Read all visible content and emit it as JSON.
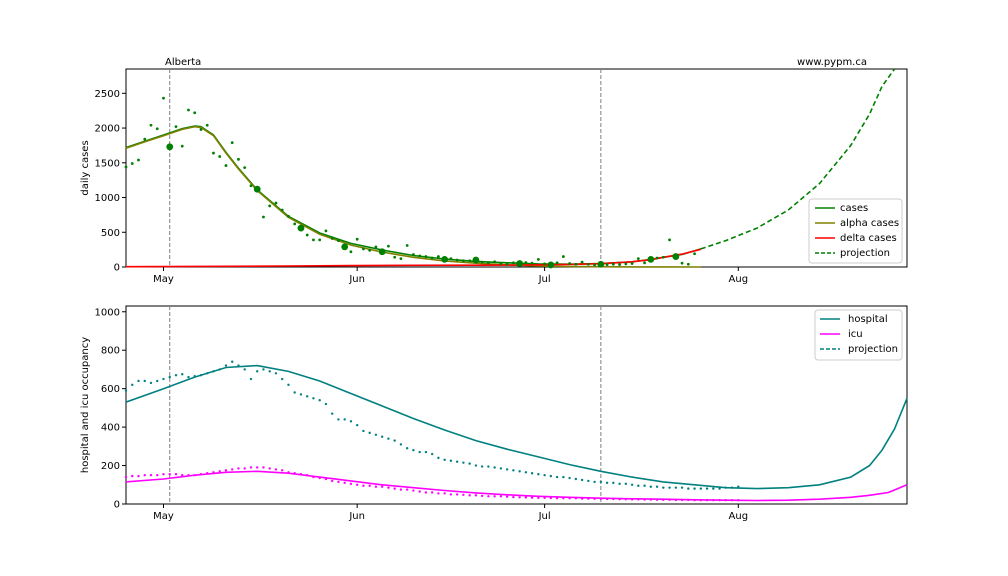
{
  "page": {
    "left_label": "Alberta",
    "right_label": "www.pypm.ca"
  },
  "x_axis": {
    "tick_labels": [
      "May",
      "Jun",
      "Jul",
      "Aug"
    ],
    "tick_days": [
      0,
      31,
      61,
      92
    ],
    "range": [
      -6,
      119
    ]
  },
  "vertical_markers_days": [
    1,
    70
  ],
  "colors": {
    "cases": "#008000",
    "alpha": "#808000",
    "delta": "#ff0000",
    "hospital": "#008080",
    "icu": "#ff00ff",
    "marker_line": "#808080"
  },
  "chart_data": [
    {
      "type": "line",
      "ylabel": "daily cases",
      "ylim": [
        0,
        2850
      ],
      "yticks": [
        0,
        500,
        1000,
        1500,
        2000,
        2500
      ],
      "legend_position": "lower-right",
      "series": [
        {
          "name": "cases",
          "style": "solid",
          "color": "#008000",
          "x": [
            -6,
            -3,
            0,
            3,
            5,
            6,
            8,
            10,
            12,
            15,
            20,
            25,
            30,
            35,
            40,
            45,
            50,
            55,
            60,
            65,
            70,
            75,
            78,
            80,
            83,
            86
          ],
          "y": [
            1720,
            1810,
            1900,
            1990,
            2030,
            2020,
            1900,
            1650,
            1420,
            1110,
            730,
            490,
            340,
            245,
            165,
            115,
            80,
            60,
            45,
            40,
            50,
            75,
            110,
            140,
            180,
            260
          ]
        },
        {
          "name": "alpha cases",
          "style": "solid",
          "color": "#808000",
          "x": [
            -6,
            -3,
            0,
            3,
            5,
            6,
            8,
            10,
            12,
            15,
            20,
            25,
            30,
            35,
            40,
            45,
            50,
            55,
            60,
            65,
            70,
            75,
            80,
            86
          ],
          "y": [
            1710,
            1800,
            1890,
            1980,
            2020,
            2010,
            1890,
            1640,
            1410,
            1100,
            715,
            470,
            315,
            215,
            140,
            88,
            55,
            30,
            15,
            7,
            4,
            2,
            1,
            0
          ]
        },
        {
          "name": "delta cases",
          "style": "solid",
          "color": "#ff0000",
          "x": [
            -6,
            10,
            20,
            30,
            40,
            50,
            55,
            60,
            65,
            70,
            75,
            78,
            80,
            83,
            86
          ],
          "y": [
            5,
            10,
            15,
            20,
            24,
            26,
            28,
            32,
            38,
            48,
            75,
            105,
            140,
            185,
            255
          ]
        },
        {
          "name": "projection",
          "style": "dashed",
          "color": "#008000",
          "x": [
            86,
            90,
            95,
            100,
            105,
            110,
            113,
            115,
            117
          ],
          "y": [
            260,
            380,
            560,
            820,
            1200,
            1750,
            2200,
            2600,
            2850
          ]
        }
      ],
      "points_x": [
        -6,
        -5,
        -4,
        -3,
        -2,
        -1,
        0,
        1,
        2,
        3,
        4,
        5,
        6,
        7,
        8,
        9,
        10,
        11,
        12,
        13,
        14,
        15,
        16,
        17,
        18,
        19,
        20,
        21,
        22,
        23,
        24,
        25,
        26,
        27,
        28,
        29,
        30,
        31,
        32,
        33,
        34,
        35,
        36,
        37,
        38,
        39,
        40,
        41,
        42,
        43,
        44,
        45,
        46,
        47,
        48,
        49,
        50,
        51,
        52,
        53,
        54,
        55,
        56,
        57,
        58,
        59,
        60,
        61,
        62,
        63,
        64,
        65,
        66,
        67,
        68,
        69,
        70,
        71,
        72,
        73,
        74,
        75,
        76,
        77,
        78,
        79,
        80,
        81,
        82,
        83,
        84,
        85
      ],
      "points_y": [
        1440,
        1490,
        1540,
        1840,
        2040,
        1990,
        2430,
        1730,
        2020,
        1740,
        2260,
        2220,
        1980,
        2040,
        1640,
        1590,
        1460,
        1790,
        1550,
        1430,
        1170,
        1120,
        720,
        880,
        920,
        820,
        730,
        620,
        560,
        460,
        390,
        390,
        520,
        410,
        380,
        290,
        220,
        400,
        260,
        240,
        290,
        220,
        300,
        140,
        120,
        310,
        180,
        160,
        150,
        130,
        150,
        110,
        120,
        100,
        90,
        90,
        100,
        70,
        60,
        75,
        50,
        40,
        60,
        50,
        65,
        55,
        110,
        45,
        30,
        60,
        150,
        50,
        40,
        70,
        40,
        30,
        40,
        35,
        40,
        35,
        45,
        50,
        120,
        60,
        110,
        130,
        140,
        390,
        150,
        55,
        40,
        190
      ],
      "points_size": [
        2,
        2,
        2,
        2,
        2,
        2,
        2,
        5,
        2,
        2,
        2,
        2,
        2,
        2,
        2,
        2,
        2,
        2,
        2,
        2,
        2,
        5,
        2,
        2,
        2,
        2,
        2,
        2,
        5,
        2,
        2,
        2,
        2,
        2,
        2,
        5,
        2,
        2,
        2,
        2,
        2,
        5,
        2,
        2,
        2,
        2,
        2,
        2,
        2,
        2,
        2,
        5,
        2,
        2,
        2,
        2,
        5,
        2,
        2,
        2,
        2,
        2,
        2,
        5,
        2,
        2,
        2,
        2,
        5,
        2,
        2,
        2,
        2,
        2,
        2,
        2,
        5,
        2,
        2,
        2,
        2,
        2,
        2,
        2,
        5,
        2,
        2,
        2,
        5,
        2,
        2,
        2
      ]
    },
    {
      "type": "line",
      "ylabel": "hospital and icu occupancy",
      "ylim": [
        0,
        1030
      ],
      "yticks": [
        0,
        200,
        400,
        600,
        800,
        1000
      ],
      "legend_position": "top-right",
      "series": [
        {
          "name": "hospital",
          "style": "solid",
          "color": "#008080",
          "x": [
            -6,
            0,
            5,
            10,
            15,
            20,
            25,
            30,
            35,
            40,
            45,
            50,
            55,
            60,
            65,
            70,
            75,
            80,
            85,
            90,
            95,
            100,
            105,
            110,
            113,
            115,
            117,
            119
          ],
          "y": [
            530,
            600,
            660,
            710,
            720,
            690,
            640,
            575,
            510,
            445,
            385,
            330,
            285,
            245,
            205,
            170,
            140,
            115,
            100,
            85,
            80,
            85,
            100,
            140,
            200,
            280,
            390,
            550
          ]
        },
        {
          "name": "icu",
          "style": "solid",
          "color": "#ff00ff",
          "x": [
            -6,
            0,
            5,
            10,
            15,
            20,
            25,
            30,
            35,
            40,
            45,
            50,
            55,
            60,
            65,
            70,
            75,
            80,
            85,
            90,
            95,
            100,
            105,
            110,
            113,
            116,
            119
          ],
          "y": [
            115,
            130,
            150,
            165,
            170,
            160,
            140,
            120,
            100,
            85,
            70,
            58,
            48,
            40,
            35,
            30,
            27,
            25,
            22,
            20,
            18,
            20,
            25,
            35,
            45,
            60,
            100
          ]
        },
        {
          "name": "projection",
          "style": "dashed",
          "color": "#008080",
          "x": [],
          "y": []
        }
      ],
      "hospital_points_x": [
        -6,
        -5,
        -4,
        -3,
        -2,
        -1,
        0,
        1,
        2,
        3,
        4,
        5,
        6,
        7,
        8,
        9,
        10,
        11,
        12,
        13,
        14,
        15,
        16,
        17,
        18,
        19,
        20,
        21,
        22,
        23,
        24,
        25,
        26,
        27,
        28,
        29,
        30,
        31,
        32,
        33,
        34,
        35,
        36,
        37,
        38,
        39,
        40,
        41,
        42,
        43,
        44,
        45,
        46,
        47,
        48,
        49,
        50,
        51,
        52,
        53,
        54,
        55,
        56,
        57,
        58,
        59,
        60,
        61,
        62,
        63,
        64,
        65,
        66,
        67,
        68,
        69,
        70,
        71,
        72,
        73,
        74,
        75,
        76,
        77,
        78,
        79,
        80,
        81,
        82,
        83,
        84,
        85,
        86,
        87,
        88,
        89,
        90,
        91,
        92
      ],
      "hospital_points_y": [
        590,
        620,
        640,
        640,
        630,
        640,
        650,
        660,
        670,
        675,
        660,
        665,
        670,
        680,
        690,
        700,
        720,
        740,
        720,
        700,
        650,
        690,
        700,
        690,
        680,
        650,
        620,
        580,
        570,
        560,
        550,
        540,
        520,
        470,
        440,
        440,
        430,
        410,
        380,
        370,
        360,
        350,
        340,
        330,
        310,
        290,
        280,
        270,
        270,
        260,
        240,
        230,
        225,
        220,
        215,
        210,
        200,
        195,
        195,
        190,
        185,
        180,
        175,
        170,
        165,
        160,
        155,
        150,
        145,
        140,
        140,
        135,
        130,
        125,
        120,
        115,
        115,
        110,
        110,
        105,
        105,
        100,
        95,
        95,
        90,
        90,
        85,
        85,
        85,
        85,
        80,
        80,
        80,
        80,
        80,
        80,
        85,
        85,
        90
      ],
      "icu_points_x": [
        -6,
        -5,
        -4,
        -3,
        -2,
        -1,
        0,
        1,
        2,
        3,
        4,
        5,
        6,
        7,
        8,
        9,
        10,
        11,
        12,
        13,
        14,
        15,
        16,
        17,
        18,
        19,
        20,
        21,
        22,
        23,
        24,
        25,
        26,
        27,
        28,
        29,
        30,
        31,
        32,
        33,
        34,
        35,
        36,
        37,
        38,
        39,
        40,
        41,
        42,
        43,
        44,
        45,
        46,
        47,
        48,
        49,
        50,
        51,
        52,
        53,
        54,
        55,
        56,
        57,
        58,
        59,
        60,
        61,
        62,
        63,
        64,
        65,
        66,
        67,
        68,
        69,
        70,
        71,
        72,
        73,
        74,
        75,
        76,
        77,
        78,
        79,
        80,
        81,
        82,
        83,
        84,
        85,
        86,
        87,
        88,
        89,
        90,
        91,
        92
      ],
      "icu_points_y": [
        140,
        145,
        145,
        150,
        150,
        150,
        155,
        155,
        155,
        150,
        150,
        150,
        155,
        160,
        165,
        170,
        175,
        180,
        185,
        185,
        190,
        190,
        190,
        185,
        180,
        175,
        165,
        160,
        155,
        150,
        140,
        135,
        130,
        120,
        115,
        110,
        105,
        100,
        95,
        95,
        90,
        90,
        85,
        80,
        75,
        75,
        70,
        65,
        60,
        60,
        55,
        55,
        50,
        50,
        48,
        45,
        45,
        42,
        40,
        40,
        40,
        38,
        36,
        35,
        34,
        33,
        32,
        32,
        31,
        30,
        30,
        30,
        30,
        28,
        28,
        27,
        27,
        26,
        26,
        25,
        25,
        24,
        24,
        23,
        23,
        22,
        22,
        22,
        21,
        21,
        21,
        20,
        20,
        20,
        20,
        20,
        20,
        20,
        20
      ]
    }
  ]
}
